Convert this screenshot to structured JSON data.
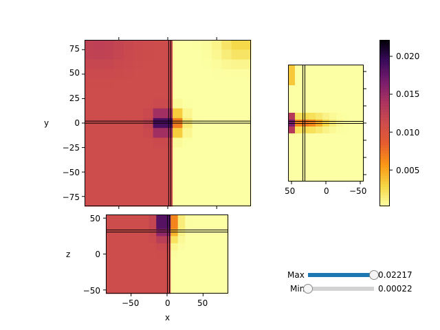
{
  "figure": {
    "xy_panel": {
      "ylabel": "y",
      "xticks": [],
      "yticks": [
        "75",
        "50",
        "25",
        "0",
        "−25",
        "−50",
        "−75"
      ]
    },
    "zy_panel": {
      "xticks": [
        "50",
        "0",
        "−50"
      ]
    },
    "xz_panel": {
      "xlabel": "x",
      "ylabel": "z",
      "xticks": [
        "−50",
        "0",
        "50"
      ],
      "yticks": [
        "50",
        "0",
        "−50"
      ]
    },
    "colorbar": {
      "ticks": [
        "0.020",
        "0.015",
        "0.010",
        "0.005"
      ],
      "colormap": "inferno_r"
    }
  },
  "controls": {
    "max_slider": {
      "label": "Max",
      "value_text": "0.02217",
      "fraction": 1.0
    },
    "min_slider": {
      "label": "Min",
      "value_text": "0.00022",
      "fraction": 0.0
    }
  },
  "colors": {
    "accent": "#1f77b4",
    "background": "#cd4c4c",
    "track": "#d3d3d3"
  },
  "chart_data": [
    {
      "type": "heatmap",
      "title": "",
      "xlabel": "",
      "ylabel": "y",
      "xlim": [
        -85,
        85
      ],
      "ylim": [
        -85,
        85
      ],
      "colorbar_range": [
        0.00022,
        0.02217
      ],
      "crosshair": {
        "x": 2,
        "y": 1
      }
    },
    {
      "type": "heatmap",
      "title": "",
      "xlabel": "",
      "ylabel": "",
      "xlim": [
        55,
        -55
      ],
      "ylim": [
        -85,
        85
      ],
      "colorbar_range": [
        0.00022,
        0.02217
      ],
      "crosshair": {
        "x": 32,
        "y": 1
      }
    },
    {
      "type": "heatmap",
      "title": "",
      "xlabel": "x",
      "ylabel": "z",
      "xlim": [
        -85,
        85
      ],
      "ylim": [
        -55,
        55
      ],
      "colorbar_range": [
        0.00022,
        0.02217
      ],
      "crosshair": {
        "x": 2,
        "y": 32
      }
    }
  ]
}
